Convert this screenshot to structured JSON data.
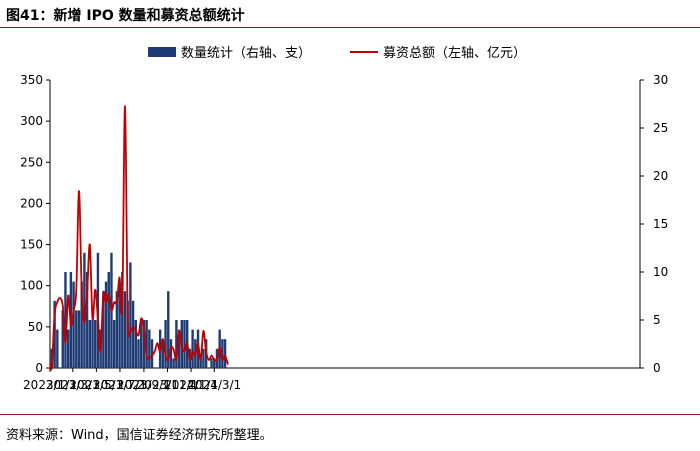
{
  "figure": {
    "title": "图41：新增 IPO 数量和募资总额统计",
    "source": "资料来源：Wind，国信证券经济研究所整理。"
  },
  "colors": {
    "bar": "#1f3b73",
    "line": "#c00000",
    "axis": "#000000",
    "rule": "#8b1a1a"
  },
  "chart_data": {
    "type": "bar",
    "title": "",
    "legend_position": "top",
    "grid": false,
    "x_axis": {
      "ticks": [
        "2023/1/1",
        "2023/3/1",
        "2023/5/1",
        "2023/7/1",
        "2023/9/1",
        "2023/11/1",
        "2024/1/1",
        "2024/3/1"
      ]
    },
    "y_left": {
      "label": "",
      "min": 0,
      "max": 350,
      "ticks": [
        0,
        50,
        100,
        150,
        200,
        250,
        300,
        350
      ]
    },
    "y_right": {
      "label": "",
      "min": 0,
      "max": 30,
      "ticks": [
        0,
        5,
        10,
        15,
        20,
        25,
        30
      ]
    },
    "series": [
      {
        "name": "数量统计（右轴、支）",
        "type": "bar",
        "axis": "right",
        "x": [
          "2023/1/6",
          "2023/1/13",
          "2023/1/20",
          "2023/2/3",
          "2023/2/10",
          "2023/2/17",
          "2023/2/24",
          "2023/3/3",
          "2023/3/10",
          "2023/3/17",
          "2023/3/24",
          "2023/3/31",
          "2023/4/7",
          "2023/4/14",
          "2023/4/21",
          "2023/4/28",
          "2023/5/5",
          "2023/5/12",
          "2023/5/19",
          "2023/5/26",
          "2023/6/2",
          "2023/6/9",
          "2023/6/16",
          "2023/6/23",
          "2023/6/30",
          "2023/7/7",
          "2023/7/14",
          "2023/7/21",
          "2023/7/28",
          "2023/8/4",
          "2023/8/11",
          "2023/8/18",
          "2023/8/25",
          "2023/9/1",
          "2023/9/8",
          "2023/9/15",
          "2023/9/22",
          "2023/10/13",
          "2023/10/20",
          "2023/10/27",
          "2023/11/3",
          "2023/11/10",
          "2023/11/17",
          "2023/11/24",
          "2023/12/1",
          "2023/12/8",
          "2023/12/15",
          "2023/12/22",
          "2023/12/29",
          "2024/1/5",
          "2024/1/12",
          "2024/1/19",
          "2024/1/26",
          "2024/2/2",
          "2024/2/9",
          "2024/2/23",
          "2024/3/1",
          "2024/3/8",
          "2024/3/15",
          "2024/3/22",
          "2024/3/29"
        ],
        "values": [
          2,
          7,
          4,
          6,
          10,
          4,
          10,
          9,
          6,
          6,
          9,
          12,
          10,
          5,
          5,
          5,
          12,
          4,
          8,
          9,
          10,
          12,
          5,
          8,
          9,
          10,
          8,
          7,
          11,
          7,
          5,
          3,
          5,
          5,
          5,
          4,
          3,
          4,
          3,
          5,
          8,
          3,
          1,
          5,
          4,
          5,
          5,
          5,
          2,
          4,
          3,
          4,
          1,
          2,
          3,
          1,
          1,
          2,
          4,
          3,
          3
        ]
      },
      {
        "name": "募资总额（左轴、亿元）",
        "type": "line",
        "axis": "left",
        "x": [
          "2023/1/1",
          "2023/1/6",
          "2023/1/13",
          "2023/1/20",
          "2023/1/27",
          "2023/2/3",
          "2023/2/10",
          "2023/2/17",
          "2023/2/24",
          "2023/3/3",
          "2023/3/10",
          "2023/3/17",
          "2023/3/24",
          "2023/3/31",
          "2023/4/7",
          "2023/4/14",
          "2023/4/21",
          "2023/4/28",
          "2023/5/5",
          "2023/5/12",
          "2023/5/19",
          "2023/5/26",
          "2023/6/2",
          "2023/6/9",
          "2023/6/16",
          "2023/6/23",
          "2023/6/30",
          "2023/7/7",
          "2023/7/14",
          "2023/7/21",
          "2023/7/28",
          "2023/8/4",
          "2023/8/11",
          "2023/8/18",
          "2023/8/25",
          "2023/9/1",
          "2023/9/8",
          "2023/9/15",
          "2023/9/22",
          "2023/9/29",
          "2023/10/6",
          "2023/10/13",
          "2023/10/20",
          "2023/10/27",
          "2023/11/3",
          "2023/11/10",
          "2023/11/17",
          "2023/11/24",
          "2023/12/1",
          "2023/12/8",
          "2023/12/15",
          "2023/12/22",
          "2023/12/29",
          "2024/1/5",
          "2024/1/12",
          "2024/1/19",
          "2024/1/26",
          "2024/2/2",
          "2024/2/9",
          "2024/2/16",
          "2024/2/23",
          "2024/3/1",
          "2024/3/8",
          "2024/3/15",
          "2024/3/22",
          "2024/3/29",
          "2024/4/5"
        ],
        "values": [
          5,
          2,
          65,
          80,
          85,
          75,
          30,
          88,
          52,
          70,
          95,
          215,
          95,
          55,
          90,
          150,
          60,
          95,
          60,
          20,
          90,
          80,
          90,
          70,
          80,
          80,
          110,
          75,
          318,
          65,
          45,
          50,
          45,
          40,
          60,
          50,
          15,
          12,
          15,
          20,
          30,
          20,
          35,
          15,
          10,
          25,
          22,
          10,
          45,
          25,
          20,
          30,
          10,
          20,
          15,
          30,
          10,
          45,
          20,
          10,
          15,
          10,
          10,
          25,
          10,
          15,
          5
        ]
      }
    ]
  }
}
